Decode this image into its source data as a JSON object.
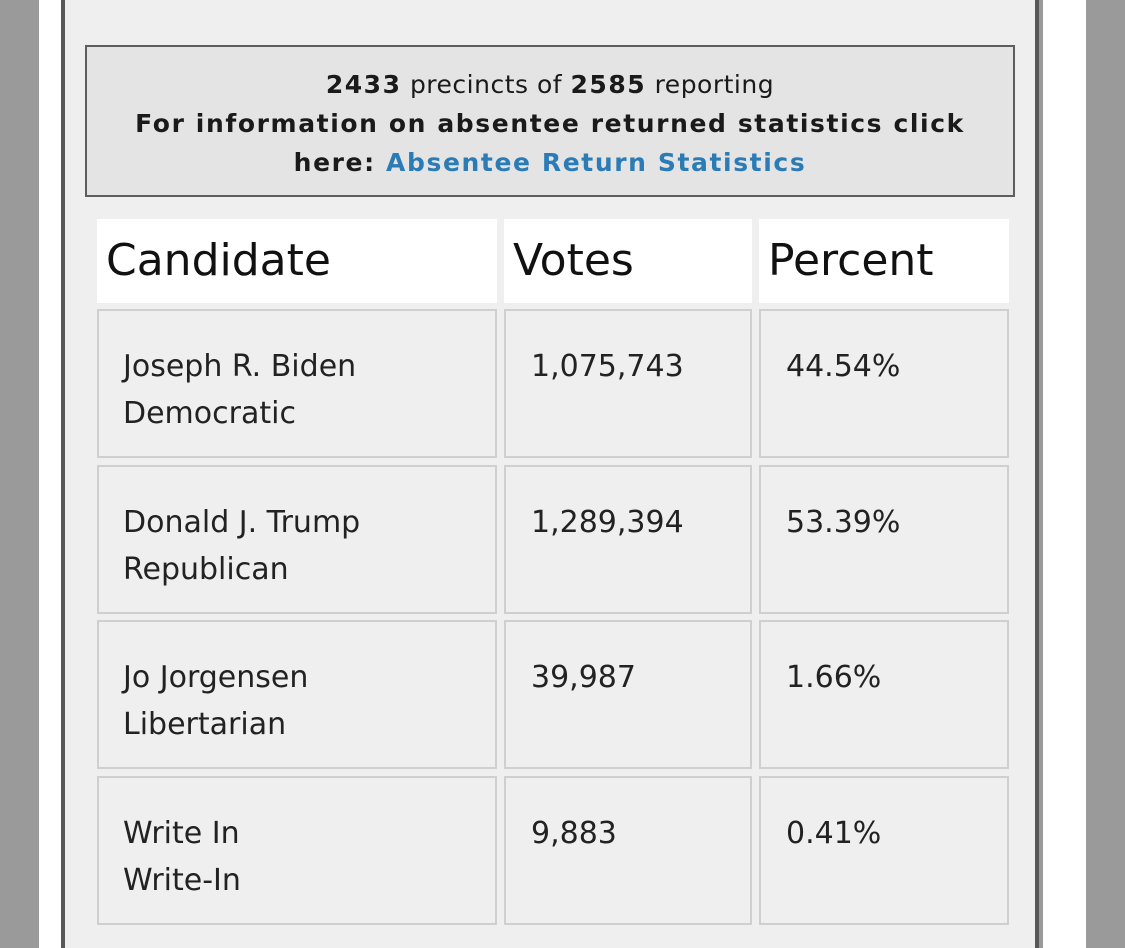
{
  "info": {
    "precincts_reporting": "2433",
    "precincts_connector": "precincts of",
    "precincts_total": "2585",
    "reporting_suffix": "reporting",
    "absentee_text_line1": "For information on absentee returned statistics click",
    "absentee_text_line2": "here:",
    "absentee_link": "Absentee Return Statistics"
  },
  "table": {
    "headers": {
      "candidate": "Candidate",
      "votes": "Votes",
      "percent": "Percent"
    },
    "rows": [
      {
        "name": "Joseph R. Biden",
        "party": "Democratic",
        "votes": "1,075,743",
        "percent": "44.54%"
      },
      {
        "name": "Donald J. Trump",
        "party": "Republican",
        "votes": "1,289,394",
        "percent": "53.39%"
      },
      {
        "name": "Jo Jorgensen",
        "party": "Libertarian",
        "votes": "39,987",
        "percent": "1.66%"
      },
      {
        "name": "Write In",
        "party": "Write-In",
        "votes": "9,883",
        "percent": "0.41%"
      }
    ]
  },
  "colors": {
    "link": "#2a7bb6",
    "page_background": "#9a9a9a",
    "panel_background": "#efefef"
  }
}
